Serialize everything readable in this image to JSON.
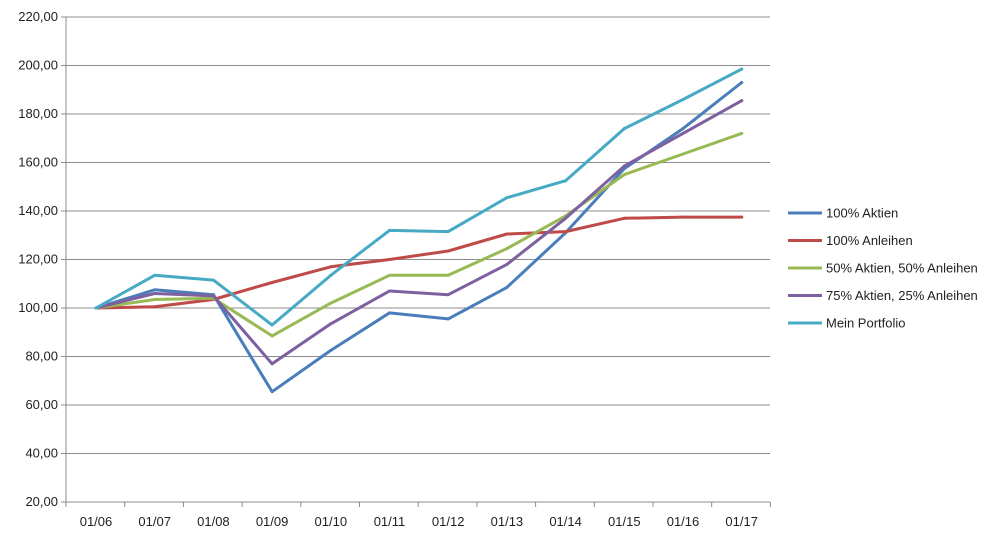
{
  "chart_data": {
    "type": "line",
    "title": "",
    "xlabel": "",
    "ylabel": "",
    "categories": [
      "01/06",
      "01/07",
      "01/08",
      "01/09",
      "01/10",
      "01/11",
      "01/12",
      "01/13",
      "01/14",
      "01/15",
      "01/16",
      "01/17"
    ],
    "ylim": [
      20,
      220
    ],
    "yticks": [
      20,
      40,
      60,
      80,
      100,
      120,
      140,
      160,
      180,
      200,
      220
    ],
    "ytick_labels": [
      "20,00",
      "40,00",
      "60,00",
      "80,00",
      "100,00",
      "120,00",
      "140,00",
      "160,00",
      "180,00",
      "200,00",
      "220,00"
    ],
    "grid": "horizontal",
    "legend_position": "right",
    "series": [
      {
        "name": "100% Aktien",
        "color": "#4a7ebb",
        "values": [
          100.0,
          107.5,
          105.5,
          65.5,
          82.5,
          98.0,
          95.5,
          108.5,
          131.0,
          157.5,
          174.0,
          193.0
        ]
      },
      {
        "name": "100% Anleihen",
        "color": "#be4b48",
        "values": [
          100.0,
          100.5,
          103.5,
          110.5,
          117.0,
          120.0,
          123.5,
          130.5,
          131.5,
          137.0,
          137.5,
          137.5
        ]
      },
      {
        "name": "50% Aktien, 50% Anleihen",
        "color": "#98b954",
        "values": [
          100.0,
          103.5,
          104.0,
          88.5,
          102.0,
          113.5,
          113.5,
          124.5,
          138.0,
          155.0,
          163.5,
          172.0
        ]
      },
      {
        "name": "75% Aktien, 25% Anleihen",
        "color": "#7d60a0",
        "values": [
          100.0,
          106.0,
          105.0,
          77.0,
          93.5,
          107.0,
          105.5,
          118.0,
          137.0,
          158.5,
          172.0,
          185.5
        ]
      },
      {
        "name": "Mein Portfolio",
        "color": "#46aac5",
        "values": [
          100.0,
          113.5,
          111.5,
          93.0,
          113.5,
          132.0,
          131.5,
          145.5,
          152.5,
          174.0,
          186.0,
          198.5
        ]
      }
    ]
  }
}
